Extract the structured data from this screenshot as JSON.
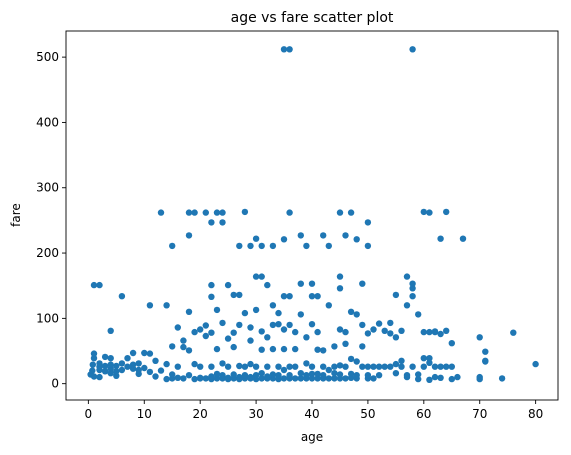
{
  "chart_data": {
    "type": "scatter",
    "title": "age vs fare scatter plot",
    "xlabel": "age",
    "ylabel": "fare",
    "xlim": [
      -4,
      84
    ],
    "ylim": [
      -25,
      540
    ],
    "xticks": [
      0,
      10,
      20,
      30,
      40,
      50,
      60,
      70,
      80
    ],
    "yticks": [
      0,
      100,
      200,
      300,
      400,
      500
    ],
    "grid": false,
    "marker_color": "#1f77b4",
    "points": [
      [
        35,
        512
      ],
      [
        36,
        512
      ],
      [
        58,
        512
      ],
      [
        13,
        262
      ],
      [
        18,
        262
      ],
      [
        19,
        262
      ],
      [
        21,
        262
      ],
      [
        23,
        262
      ],
      [
        24,
        262
      ],
      [
        28,
        263
      ],
      [
        36,
        262
      ],
      [
        45,
        262
      ],
      [
        47,
        262
      ],
      [
        60,
        263
      ],
      [
        61,
        262
      ],
      [
        64,
        263
      ],
      [
        15,
        211
      ],
      [
        18,
        227
      ],
      [
        22,
        247
      ],
      [
        24,
        247
      ],
      [
        27,
        211
      ],
      [
        29,
        211
      ],
      [
        30,
        222
      ],
      [
        31,
        211
      ],
      [
        33,
        211
      ],
      [
        35,
        221
      ],
      [
        38,
        227
      ],
      [
        39,
        211
      ],
      [
        42,
        227
      ],
      [
        43,
        211
      ],
      [
        46,
        227
      ],
      [
        48,
        221
      ],
      [
        50,
        211
      ],
      [
        50,
        247
      ],
      [
        63,
        222
      ],
      [
        67,
        222
      ],
      [
        1,
        151
      ],
      [
        2,
        151
      ],
      [
        6,
        134
      ],
      [
        11,
        120
      ],
      [
        14,
        120
      ],
      [
        22,
        151
      ],
      [
        25,
        151
      ],
      [
        26,
        136
      ],
      [
        27,
        136
      ],
      [
        30,
        164
      ],
      [
        31,
        164
      ],
      [
        32,
        151
      ],
      [
        33,
        120
      ],
      [
        34,
        91
      ],
      [
        35,
        134
      ],
      [
        36,
        134
      ],
      [
        38,
        153
      ],
      [
        40,
        153
      ],
      [
        40,
        134
      ],
      [
        41,
        134
      ],
      [
        45,
        164
      ],
      [
        45,
        146
      ],
      [
        49,
        153
      ],
      [
        55,
        136
      ],
      [
        57,
        164
      ],
      [
        58,
        146
      ],
      [
        58,
        153
      ],
      [
        61,
        79
      ],
      [
        62,
        79
      ],
      [
        4,
        81
      ],
      [
        8,
        47
      ],
      [
        10,
        47
      ],
      [
        12,
        35
      ],
      [
        15,
        57
      ],
      [
        16,
        86
      ],
      [
        17,
        66
      ],
      [
        18,
        110
      ],
      [
        19,
        79
      ],
      [
        20,
        83
      ],
      [
        21,
        89
      ],
      [
        22,
        133
      ],
      [
        22,
        78
      ],
      [
        23,
        113
      ],
      [
        24,
        93
      ],
      [
        25,
        69
      ],
      [
        26,
        78
      ],
      [
        27,
        90
      ],
      [
        28,
        108
      ],
      [
        29,
        86
      ],
      [
        29,
        66
      ],
      [
        30,
        113
      ],
      [
        31,
        80
      ],
      [
        32,
        71
      ],
      [
        33,
        90
      ],
      [
        34,
        108
      ],
      [
        35,
        83
      ],
      [
        36,
        90
      ],
      [
        37,
        79
      ],
      [
        38,
        106
      ],
      [
        39,
        71
      ],
      [
        40,
        91
      ],
      [
        41,
        79
      ],
      [
        42,
        51
      ],
      [
        43,
        120
      ],
      [
        44,
        57
      ],
      [
        45,
        83
      ],
      [
        46,
        79
      ],
      [
        47,
        110
      ],
      [
        48,
        106
      ],
      [
        49,
        90
      ],
      [
        50,
        77
      ],
      [
        51,
        83
      ],
      [
        52,
        92
      ],
      [
        53,
        81
      ],
      [
        54,
        93
      ],
      [
        55,
        71
      ],
      [
        56,
        81
      ],
      [
        57,
        120
      ],
      [
        58,
        134
      ],
      [
        59,
        106
      ],
      [
        60,
        79
      ],
      [
        61,
        39
      ],
      [
        62,
        80
      ],
      [
        63,
        76
      ],
      [
        64,
        81
      ],
      [
        65,
        62
      ],
      [
        70,
        71
      ],
      [
        71,
        49
      ],
      [
        71,
        35
      ],
      [
        76,
        78
      ],
      [
        80,
        30
      ],
      [
        0.4,
        14
      ],
      [
        0.7,
        20
      ],
      [
        0.8,
        29
      ],
      [
        1,
        11
      ],
      [
        1,
        39
      ],
      [
        1,
        46
      ],
      [
        2,
        21
      ],
      [
        2,
        26
      ],
      [
        2,
        31
      ],
      [
        2,
        10
      ],
      [
        3,
        27
      ],
      [
        3,
        19
      ],
      [
        3,
        41
      ],
      [
        4,
        16
      ],
      [
        4,
        23
      ],
      [
        4,
        29
      ],
      [
        4,
        39
      ],
      [
        5,
        12
      ],
      [
        5,
        19
      ],
      [
        5,
        27
      ],
      [
        6,
        31
      ],
      [
        6,
        21
      ],
      [
        7,
        26
      ],
      [
        7,
        39
      ],
      [
        8,
        23
      ],
      [
        8,
        29
      ],
      [
        9,
        15
      ],
      [
        9,
        21
      ],
      [
        9,
        31
      ],
      [
        10,
        24
      ],
      [
        11,
        18
      ],
      [
        11,
        46
      ],
      [
        12,
        11
      ],
      [
        13,
        20
      ],
      [
        14,
        7
      ],
      [
        14,
        30
      ],
      [
        15,
        8
      ],
      [
        15,
        14
      ],
      [
        16,
        9
      ],
      [
        16,
        26
      ],
      [
        17,
        8
      ],
      [
        17,
        56
      ],
      [
        18,
        13
      ],
      [
        18,
        51
      ],
      [
        19,
        7
      ],
      [
        19,
        30
      ],
      [
        20,
        8
      ],
      [
        20,
        9
      ],
      [
        20,
        26
      ],
      [
        21,
        8
      ],
      [
        21,
        73
      ],
      [
        22,
        7
      ],
      [
        22,
        11
      ],
      [
        22,
        26
      ],
      [
        23,
        8
      ],
      [
        23,
        15
      ],
      [
        23,
        53
      ],
      [
        24,
        8
      ],
      [
        24,
        13
      ],
      [
        24,
        31
      ],
      [
        25,
        7
      ],
      [
        25,
        9
      ],
      [
        25,
        26
      ],
      [
        26,
        8
      ],
      [
        26,
        14
      ],
      [
        26,
        56
      ],
      [
        27,
        7
      ],
      [
        27,
        10
      ],
      [
        27,
        27
      ],
      [
        28,
        8
      ],
      [
        28,
        13
      ],
      [
        28,
        26
      ],
      [
        29,
        8
      ],
      [
        29,
        10
      ],
      [
        29,
        30
      ],
      [
        30,
        7
      ],
      [
        30,
        13
      ],
      [
        30,
        26
      ],
      [
        31,
        8
      ],
      [
        31,
        16
      ],
      [
        31,
        52
      ],
      [
        32,
        8
      ],
      [
        32,
        11
      ],
      [
        32,
        26
      ],
      [
        33,
        8
      ],
      [
        33,
        14
      ],
      [
        33,
        53
      ],
      [
        34,
        7
      ],
      [
        34,
        13
      ],
      [
        34,
        26
      ],
      [
        35,
        8
      ],
      [
        35,
        21
      ],
      [
        35,
        53
      ],
      [
        36,
        8
      ],
      [
        36,
        13
      ],
      [
        36,
        26
      ],
      [
        37,
        8
      ],
      [
        37,
        26
      ],
      [
        37,
        53
      ],
      [
        38,
        8
      ],
      [
        38,
        16
      ],
      [
        39,
        8
      ],
      [
        39,
        13
      ],
      [
        39,
        31
      ],
      [
        40,
        8
      ],
      [
        40,
        15
      ],
      [
        40,
        26
      ],
      [
        41,
        8
      ],
      [
        41,
        15
      ],
      [
        41,
        52
      ],
      [
        42,
        8
      ],
      [
        42,
        13
      ],
      [
        42,
        26
      ],
      [
        43,
        8
      ],
      [
        43,
        21
      ],
      [
        44,
        8
      ],
      [
        44,
        16
      ],
      [
        44,
        26
      ],
      [
        45,
        8
      ],
      [
        45,
        14
      ],
      [
        45,
        28
      ],
      [
        46,
        8
      ],
      [
        46,
        26
      ],
      [
        46,
        61
      ],
      [
        47,
        9
      ],
      [
        47,
        15
      ],
      [
        47,
        38
      ],
      [
        48,
        8
      ],
      [
        48,
        13
      ],
      [
        48,
        34
      ],
      [
        49,
        26
      ],
      [
        49,
        57
      ],
      [
        50,
        8
      ],
      [
        50,
        13
      ],
      [
        50,
        26
      ],
      [
        51,
        8
      ],
      [
        51,
        26
      ],
      [
        52,
        13
      ],
      [
        52,
        26
      ],
      [
        53,
        26
      ],
      [
        54,
        26
      ],
      [
        54,
        77
      ],
      [
        55,
        16
      ],
      [
        55,
        30
      ],
      [
        56,
        26
      ],
      [
        56,
        35
      ],
      [
        57,
        10
      ],
      [
        57,
        13
      ],
      [
        58,
        26
      ],
      [
        59,
        7
      ],
      [
        59,
        14
      ],
      [
        60,
        26
      ],
      [
        60,
        39
      ],
      [
        61,
        6
      ],
      [
        61,
        32
      ],
      [
        62,
        10
      ],
      [
        62,
        26
      ],
      [
        63,
        9
      ],
      [
        63,
        26
      ],
      [
        64,
        26
      ],
      [
        65,
        7
      ],
      [
        65,
        26
      ],
      [
        66,
        10
      ],
      [
        70,
        10
      ],
      [
        70,
        7
      ],
      [
        71,
        34
      ],
      [
        74,
        8
      ]
    ]
  }
}
